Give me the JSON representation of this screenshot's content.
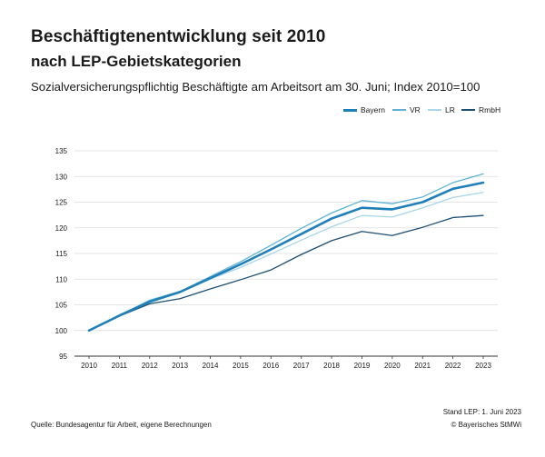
{
  "header": {
    "title": "Beschäftigtenentwicklung seit 2010",
    "subtitle": "nach LEP-Gebietskategorien",
    "description": "Sozialversicherungspflichtig Beschäftigte am Arbeitsort am 30. Juni; Index 2010=100"
  },
  "footer": {
    "source": "Quelle: Bundesagentur für Arbeit, eigene Berechnungen",
    "stand": "Stand LEP: 1. Juni 2023",
    "copyright": "© Bayerisches StMWi"
  },
  "colors": {
    "bayern": "#1f7fb8",
    "vr": "#5fb3d5",
    "lr": "#a8d5ea",
    "rmbh": "#1d4f73",
    "grid": "#dcdcdc",
    "axis": "#333333"
  },
  "chart_data": {
    "type": "line",
    "title": "Beschäftigtenentwicklung seit 2010",
    "subtitle": "nach LEP-Gebietskategorien",
    "xlabel": "",
    "ylabel": "",
    "ylim": [
      95,
      135
    ],
    "yticks": [
      95,
      100,
      105,
      110,
      115,
      120,
      125,
      130,
      135
    ],
    "grid": true,
    "legend_position": "top-right",
    "categories": [
      "2010",
      "2011",
      "2012",
      "2013",
      "2014",
      "2015",
      "2016",
      "2017",
      "2018",
      "2019",
      "2020",
      "2021",
      "2022",
      "2023"
    ],
    "series": [
      {
        "name": "Bayern",
        "key": "bayern",
        "emphasis": true,
        "values": [
          100,
          102.9,
          105.6,
          107.5,
          110.2,
          112.9,
          115.8,
          118.8,
          121.8,
          123.9,
          123.6,
          125.0,
          127.6,
          128.8
        ]
      },
      {
        "name": "VR",
        "key": "vr",
        "emphasis": false,
        "values": [
          100,
          102.9,
          105.9,
          107.6,
          110.5,
          113.4,
          116.6,
          119.9,
          122.9,
          125.3,
          124.7,
          126.0,
          128.8,
          130.5
        ]
      },
      {
        "name": "LR",
        "key": "lr",
        "emphasis": false,
        "values": [
          100,
          102.8,
          105.7,
          107.4,
          110.0,
          112.3,
          114.9,
          117.6,
          120.2,
          122.4,
          122.1,
          123.9,
          125.9,
          126.9
        ]
      },
      {
        "name": "RmbH",
        "key": "rmbh",
        "emphasis": false,
        "values": [
          100,
          102.8,
          105.2,
          106.2,
          108.1,
          109.9,
          111.8,
          114.8,
          117.5,
          119.3,
          118.5,
          120.1,
          122.0,
          122.4
        ]
      }
    ]
  }
}
